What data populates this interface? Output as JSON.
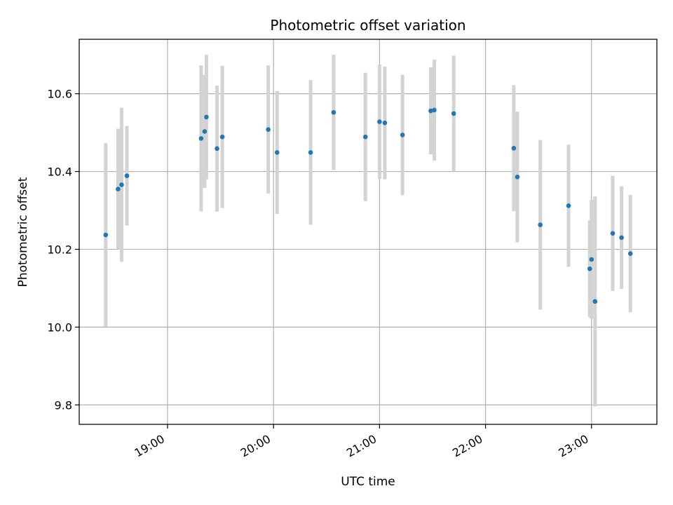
{
  "chart_data": {
    "type": "scatter",
    "title": "Photometric offset variation",
    "xlabel": "UTC time",
    "ylabel": "Photometric offset",
    "x_tick_labels": [
      "19:00",
      "20:00",
      "21:00",
      "22:00",
      "23:00"
    ],
    "x_ticks": [
      "19:00",
      "20:00",
      "21:00",
      "22:00",
      "23:00"
    ],
    "y_ticks": [
      9.8,
      10.0,
      10.2,
      10.4,
      10.6
    ],
    "y_tick_labels": [
      "9.8",
      "10.0",
      "10.2",
      "10.4",
      "10.6"
    ],
    "xlim": [
      "18:10",
      "23:37"
    ],
    "ylim": [
      9.75,
      10.74
    ],
    "grid": true,
    "colors": {
      "marker": "#1f77b4",
      "errorbar": "#d3d3d3",
      "grid": "#b0b0b0"
    },
    "series": [
      {
        "x": [
          "18:25",
          "18:32",
          "18:34",
          "18:37",
          "19:19",
          "19:21",
          "19:22",
          "19:28",
          "19:31",
          "19:57",
          "20:02",
          "20:21",
          "20:34",
          "20:52",
          "21:00",
          "21:03",
          "21:13",
          "21:29",
          "21:31",
          "21:42",
          "22:16",
          "22:18",
          "22:31",
          "22:47",
          "22:59",
          "23:00",
          "23:02",
          "23:12",
          "23:17",
          "23:22"
        ],
        "y": [
          10.237,
          10.355,
          10.366,
          10.389,
          10.485,
          10.503,
          10.54,
          10.459,
          10.489,
          10.508,
          10.449,
          10.449,
          10.552,
          10.489,
          10.528,
          10.525,
          10.494,
          10.556,
          10.558,
          10.549,
          10.46,
          10.386,
          10.263,
          10.312,
          10.15,
          10.174,
          10.066,
          10.241,
          10.23,
          10.189
        ],
        "yerr": [
          0.236,
          0.155,
          0.198,
          0.128,
          0.188,
          0.145,
          0.16,
          0.162,
          0.183,
          0.165,
          0.158,
          0.186,
          0.148,
          0.165,
          0.147,
          0.145,
          0.155,
          0.112,
          0.13,
          0.149,
          0.162,
          0.168,
          0.218,
          0.157,
          0.125,
          0.153,
          0.27,
          0.148,
          0.132,
          0.151
        ]
      }
    ]
  }
}
